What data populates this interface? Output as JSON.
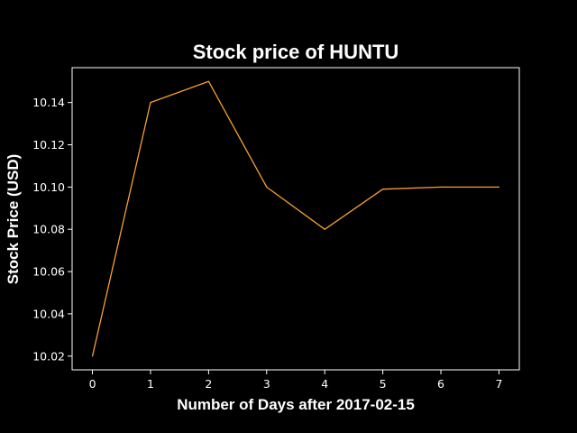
{
  "chart_data": {
    "type": "line",
    "title": "Stock price of HUNTU",
    "xlabel": "Number of Days after 2017-02-15",
    "ylabel": "Stock Price (USD)",
    "x": [
      0,
      1,
      2,
      3,
      4,
      5,
      6,
      7
    ],
    "series": [
      {
        "values": [
          10.02,
          10.14,
          10.15,
          10.1,
          10.08,
          10.099,
          10.1,
          10.1
        ],
        "color": "#f5a030"
      }
    ],
    "xlim": [
      -0.35,
      7.35
    ],
    "ylim": [
      10.0135,
      10.1565
    ],
    "xticks": [
      0,
      1,
      2,
      3,
      4,
      5,
      6,
      7
    ],
    "xtick_labels": [
      "0",
      "1",
      "2",
      "3",
      "4",
      "5",
      "6",
      "7"
    ],
    "yticks": [
      10.02,
      10.04,
      10.06,
      10.08,
      10.1,
      10.12,
      10.14
    ],
    "ytick_labels": [
      "10.02",
      "10.04",
      "10.06",
      "10.08",
      "10.10",
      "10.12",
      "10.14"
    ],
    "grid": false,
    "legend": false,
    "background_color": "#000000",
    "axis_color": "#ffffff"
  }
}
